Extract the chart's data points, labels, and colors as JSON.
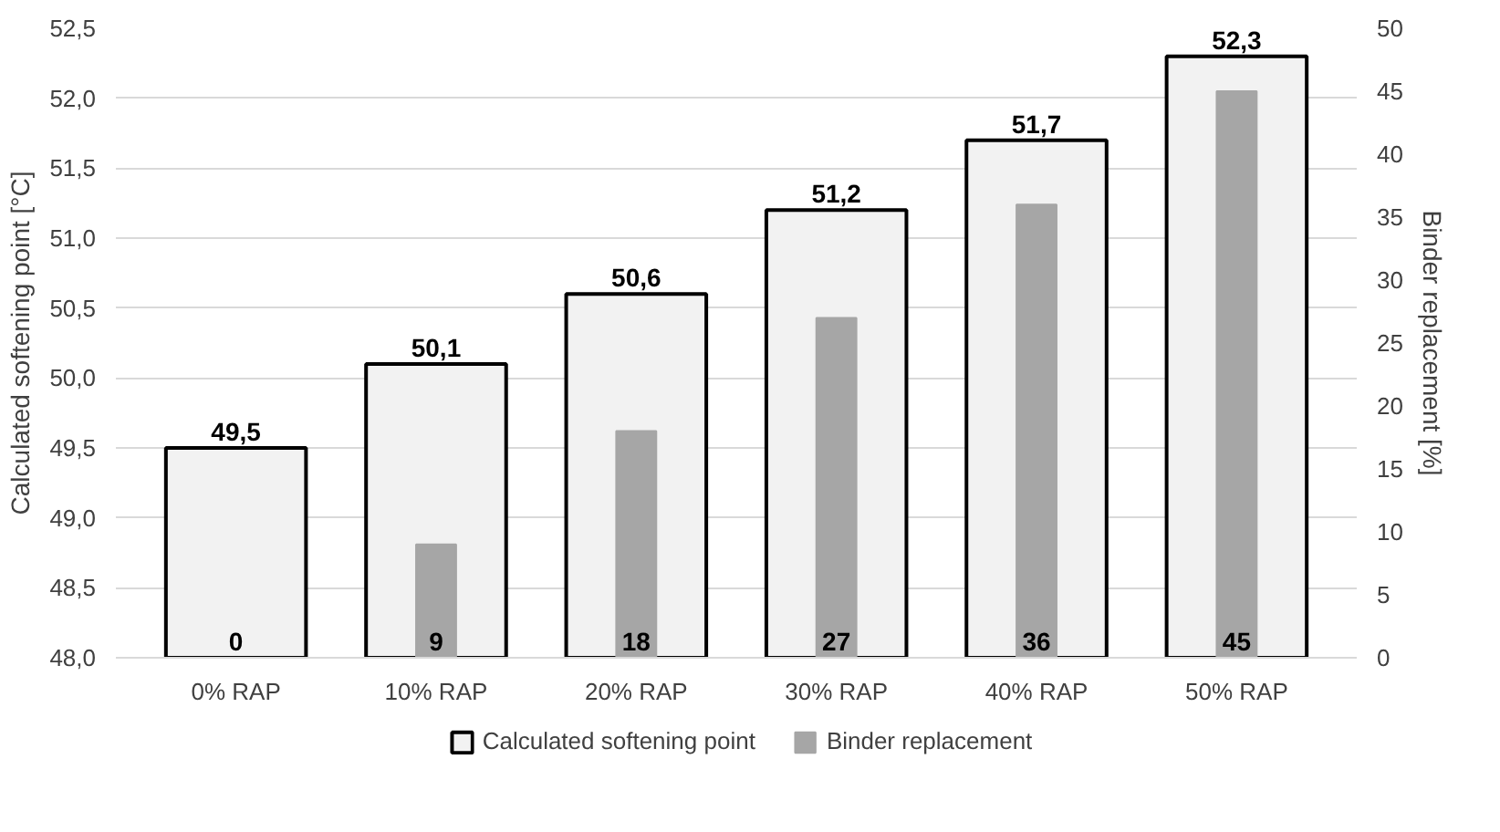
{
  "chart_data": {
    "type": "bar",
    "categories": [
      "0% RAP",
      "10% RAP",
      "20% RAP",
      "30% RAP",
      "40% RAP",
      "50% RAP"
    ],
    "ylabel": "Calculated softening point [°C]",
    "y2label": "Binder replacement [%]",
    "series": [
      {
        "name": "Calculated softening point",
        "color": "#f2f2f2",
        "values": [
          49.5,
          50.1,
          50.6,
          51.2,
          51.7,
          52.3
        ],
        "value_labels": [
          "49,5",
          "50,1",
          "50,6",
          "51,2",
          "51,7",
          "52,3"
        ]
      },
      {
        "name": "Binder replacement",
        "color": "#a6a6a6",
        "axis": "y2",
        "values": [
          0,
          9,
          18,
          27,
          36,
          45
        ],
        "value_labels": [
          "0",
          "9",
          "18",
          "27",
          "36",
          "45"
        ]
      }
    ],
    "ylim": [
      48,
      52.5
    ],
    "yticks": [
      {
        "value": 48,
        "label": "48,0"
      },
      {
        "value": 48.5,
        "label": "48,5"
      },
      {
        "value": 49,
        "label": "49,0"
      },
      {
        "value": 49.5,
        "label": "49,5"
      },
      {
        "value": 50,
        "label": "50,0"
      },
      {
        "value": 50.5,
        "label": "50,5"
      },
      {
        "value": 51,
        "label": "51,0"
      },
      {
        "value": 51.5,
        "label": "51,5"
      },
      {
        "value": 52,
        "label": "52,0"
      },
      {
        "value": 52.5,
        "label": "52,5"
      }
    ],
    "y2lim": [
      0,
      50
    ],
    "y2ticks": [
      0,
      5,
      10,
      15,
      20,
      25,
      30,
      35,
      40,
      45,
      50
    ],
    "grid": "y",
    "legend": "bottom"
  }
}
